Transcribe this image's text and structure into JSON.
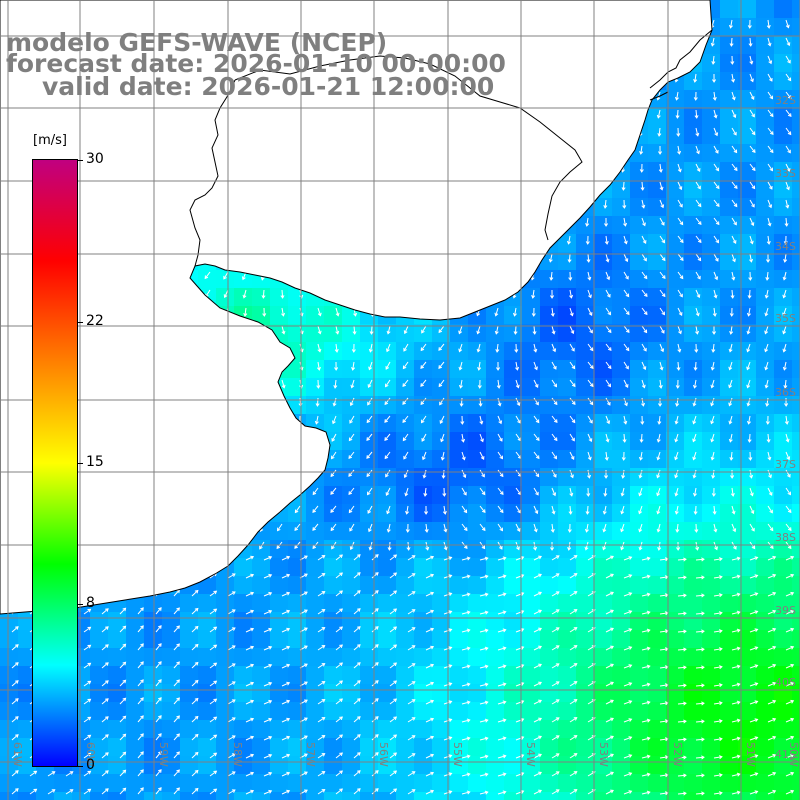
{
  "title": {
    "line1": "modelo GEFS-WAVE (NCEP)",
    "line2": "forecast date: 2026-01-10 00:00:00",
    "line3": "valid date: 2026-01-21 12:00:00"
  },
  "colorbar": {
    "unit": "[m/s]",
    "ticks": [
      "30",
      "22",
      "15",
      "8",
      "0"
    ],
    "tick_values": [
      30,
      22,
      15,
      8,
      0
    ],
    "colors": [
      "#0000ff",
      "#00ffff",
      "#00ff00",
      "#ffff00",
      "#ff8000",
      "#ff0000",
      "#c00080"
    ]
  },
  "map": {
    "longitude_labels": [
      "61W",
      "60W",
      "59W",
      "58W",
      "57W",
      "56W",
      "55W",
      "54W",
      "53W",
      "52W",
      "51W",
      "50W"
    ],
    "latitude_labels": [
      "32S",
      "33S",
      "34S",
      "35S",
      "36S",
      "37S",
      "38S",
      "39S",
      "40S",
      "41S"
    ],
    "land_color": "#ffffff",
    "grid_color": "#808080",
    "coastline_color": "#000000",
    "arrow_color": "#ffffff"
  }
}
